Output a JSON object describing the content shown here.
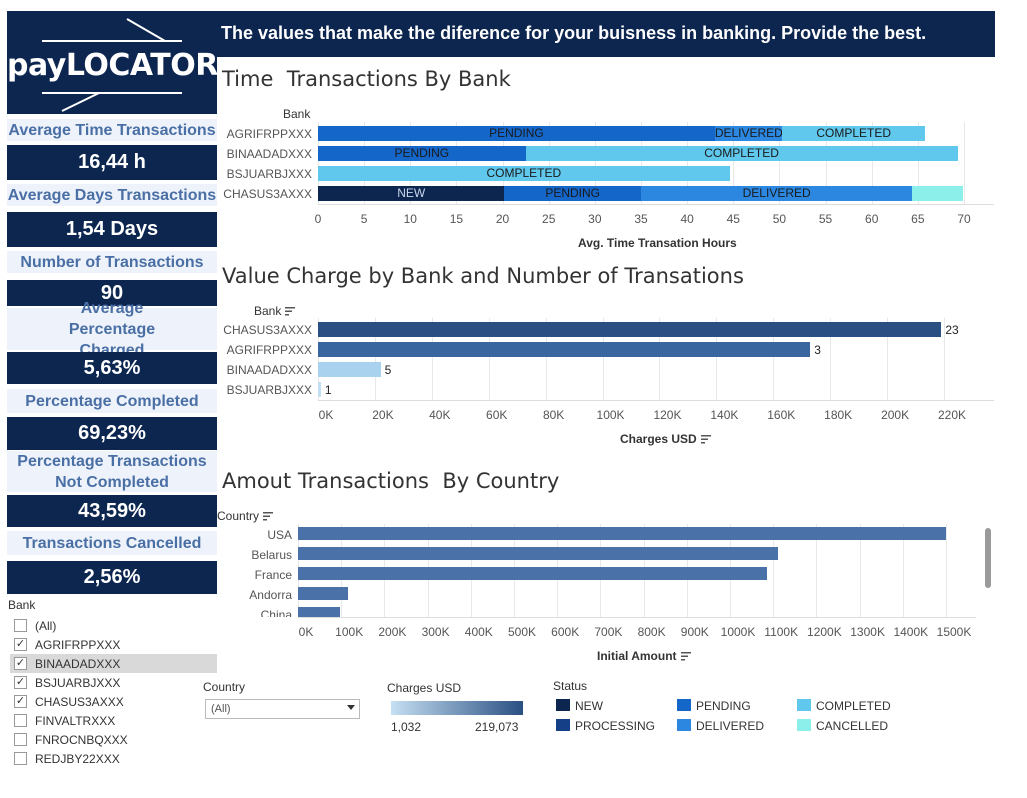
{
  "logo": {
    "text": "payLOCATOR"
  },
  "banner": {
    "text": "The values that make the diference for your buisness in banking. Provide the best."
  },
  "kpis": [
    {
      "label": "Average Time Transactions",
      "value": "16,44 h"
    },
    {
      "label": "Average Days Transactions",
      "value": "1,54 Days"
    },
    {
      "label": "Number of Transactions",
      "value": "90"
    },
    {
      "label": "Average Percentage Charged",
      "value": "5,63%"
    },
    {
      "label": "Percentage Completed",
      "value": "69,23%"
    },
    {
      "label": "Percentage Transactions Not Completed",
      "value": "43,59%"
    },
    {
      "label": "Transactions Cancelled",
      "value": "2,56%"
    }
  ],
  "bank_filter": {
    "title": "Bank",
    "items": [
      {
        "label": "(All)",
        "checked": false
      },
      {
        "label": "AGRIFRPPXXX",
        "checked": true
      },
      {
        "label": "BINAADADXXX",
        "checked": true,
        "highlighted": true
      },
      {
        "label": "BSJUARBJXXX",
        "checked": true
      },
      {
        "label": "CHASUS3AXXX",
        "checked": true
      },
      {
        "label": "FINVALTRXXX",
        "checked": false
      },
      {
        "label": "FNROCNBQXXX",
        "checked": false
      },
      {
        "label": "REDJBY22XXX",
        "checked": false
      }
    ]
  },
  "country_filter": {
    "title": "Country",
    "selected": "(All)"
  },
  "charges_legend": {
    "title": "Charges USD",
    "min": "1,032",
    "max": "219,073",
    "color_low": "#c5dff2",
    "color_high": "#2a4f82"
  },
  "status_legend": {
    "title": "Status",
    "items": [
      {
        "label": "NEW",
        "color": "#0d2650"
      },
      {
        "label": "PROCESSING",
        "color": "#153f86"
      },
      {
        "label": "PENDING",
        "color": "#1566c9"
      },
      {
        "label": "DELIVERED",
        "color": "#2b87e0"
      },
      {
        "label": "COMPLETED",
        "color": "#5fc8ec"
      },
      {
        "label": "CANCELLED",
        "color": "#8cefe9"
      }
    ]
  },
  "chart_data": [
    {
      "type": "bar",
      "orientation": "horizontal-stacked",
      "title": "Time  Transactions By Bank",
      "category_header": "Bank",
      "xlabel": "Avg. Time Transation Hours",
      "xlim": [
        0,
        70
      ],
      "xticks": [
        "0",
        "5",
        "10",
        "15",
        "20",
        "25",
        "30",
        "35",
        "40",
        "45",
        "50",
        "55",
        "60",
        "65",
        "70"
      ],
      "categories": [
        "AGRIFRPPXXX",
        "BINAADADXXX",
        "BSJUARBJXXX",
        "CHASUS3AXXX"
      ],
      "stacks": [
        [
          {
            "status": "PENDING",
            "value": 43,
            "color": "#1566c9",
            "label": "PENDING"
          },
          {
            "status": "DELIVERED",
            "value": 7.3,
            "color": "#2b87e0",
            "label": "DELIVERED"
          },
          {
            "status": "COMPLETED",
            "value": 15.5,
            "color": "#5fc8ec",
            "label": "COMPLETED"
          }
        ],
        [
          {
            "status": "PENDING",
            "value": 22.5,
            "color": "#1566c9",
            "label": "PENDING"
          },
          {
            "status": "COMPLETED",
            "value": 46.8,
            "color": "#5fc8ec",
            "label": "COMPLETED"
          }
        ],
        [
          {
            "status": "COMPLETED",
            "value": 44.6,
            "color": "#5fc8ec",
            "label": "COMPLETED"
          }
        ],
        [
          {
            "status": "NEW",
            "value": 20.2,
            "color": "#0d2650",
            "label": "NEW"
          },
          {
            "status": "PENDING",
            "value": 14.8,
            "color": "#1566c9",
            "label": "PENDING"
          },
          {
            "status": "DELIVERED",
            "value": 29.4,
            "color": "#2b87e0",
            "label": "DELIVERED"
          },
          {
            "status": "CANCELLED",
            "value": 5.5,
            "color": "#8cefe9",
            "label": ""
          }
        ]
      ]
    },
    {
      "type": "bar",
      "orientation": "horizontal",
      "title": "Value Charge by Bank and Number of Transations",
      "category_header": "Bank",
      "xlabel": "Charges USD",
      "xlim": [
        0,
        236000
      ],
      "xticks": [
        "0K",
        "20K",
        "40K",
        "60K",
        "80K",
        "100K",
        "120K",
        "140K",
        "160K",
        "180K",
        "200K",
        "220K"
      ],
      "categories": [
        "CHASUS3AXXX",
        "AGRIFRPPXXX",
        "BINAADADXXX",
        "BSJUARBJXXX"
      ],
      "values": [
        219073,
        173000,
        22000,
        1032
      ],
      "data_labels": [
        "23",
        "3",
        "5",
        "1"
      ],
      "colors": [
        "#2a4f82",
        "#3a66a0",
        "#a9d2ef",
        "#c5dff2"
      ]
    },
    {
      "type": "bar",
      "orientation": "horizontal",
      "title": "Amout Transactions  By Country",
      "category_header": "Country",
      "xlabel": "Initial Amount",
      "xlim": [
        0,
        1610000
      ],
      "xticks": [
        "0K",
        "100K",
        "200K",
        "300K",
        "400K",
        "500K",
        "600K",
        "700K",
        "800K",
        "900K",
        "1000K",
        "1100K",
        "1200K",
        "1300K",
        "1400K",
        "1500K"
      ],
      "categories": [
        "USA",
        "Belarus",
        "France",
        "Andorra",
        "China"
      ],
      "values": [
        1500000,
        1110000,
        1085000,
        115000,
        98000
      ],
      "color": "#4a72a8"
    }
  ]
}
